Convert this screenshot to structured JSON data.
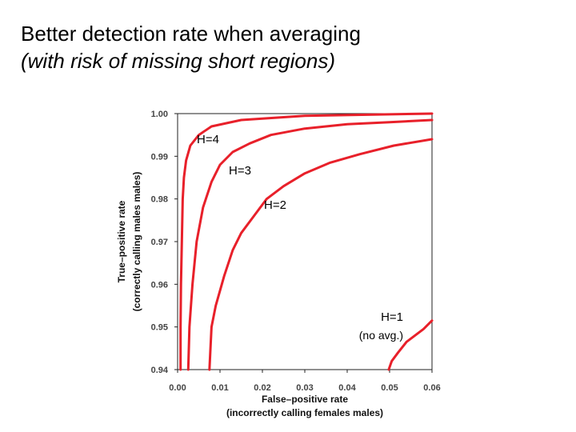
{
  "title": "Better detection rate when averaging",
  "subtitle": "(with risk of missing short regions)",
  "chart_data": {
    "type": "line",
    "xlabel": "False–positive rate",
    "xlabel_sub": "(incorrectly calling females males)",
    "ylabel": "True–positive rate",
    "ylabel_sub": "(correctly calling males males)",
    "xlim": [
      0.0,
      0.06
    ],
    "ylim": [
      0.94,
      1.0
    ],
    "xticks": [
      "0.00",
      "0.01",
      "0.02",
      "0.03",
      "0.04",
      "0.05",
      "0.06"
    ],
    "yticks": [
      "0.94",
      "0.95",
      "0.96",
      "0.97",
      "0.98",
      "0.99",
      "1.00"
    ],
    "grid": false,
    "line_color": "#e8202a",
    "series": [
      {
        "name": "H=4",
        "label": "H=4",
        "note": "",
        "points": [
          [
            0.0007,
            0.94
          ],
          [
            0.0007,
            0.95
          ],
          [
            0.0008,
            0.96
          ],
          [
            0.001,
            0.97
          ],
          [
            0.0012,
            0.98
          ],
          [
            0.0015,
            0.985
          ],
          [
            0.002,
            0.989
          ],
          [
            0.003,
            0.9925
          ],
          [
            0.005,
            0.995
          ],
          [
            0.008,
            0.997
          ],
          [
            0.015,
            0.9985
          ],
          [
            0.03,
            0.9995
          ],
          [
            0.06,
            1.0
          ]
        ]
      },
      {
        "name": "H=3",
        "label": "H=3",
        "note": "",
        "points": [
          [
            0.0025,
            0.94
          ],
          [
            0.0028,
            0.95
          ],
          [
            0.0035,
            0.96
          ],
          [
            0.0045,
            0.97
          ],
          [
            0.006,
            0.978
          ],
          [
            0.008,
            0.984
          ],
          [
            0.01,
            0.988
          ],
          [
            0.013,
            0.991
          ],
          [
            0.017,
            0.993
          ],
          [
            0.022,
            0.995
          ],
          [
            0.03,
            0.9965
          ],
          [
            0.04,
            0.9975
          ],
          [
            0.05,
            0.998
          ],
          [
            0.06,
            0.9985
          ]
        ]
      },
      {
        "name": "H=2",
        "label": "H=2",
        "note": "",
        "points": [
          [
            0.0075,
            0.94
          ],
          [
            0.008,
            0.95
          ],
          [
            0.009,
            0.955
          ],
          [
            0.011,
            0.962
          ],
          [
            0.013,
            0.968
          ],
          [
            0.015,
            0.972
          ],
          [
            0.018,
            0.976
          ],
          [
            0.021,
            0.98
          ],
          [
            0.025,
            0.983
          ],
          [
            0.03,
            0.986
          ],
          [
            0.036,
            0.9885
          ],
          [
            0.043,
            0.9905
          ],
          [
            0.051,
            0.9925
          ],
          [
            0.06,
            0.994
          ]
        ]
      },
      {
        "name": "H=1",
        "label": "H=1",
        "note": "(no avg.)",
        "points": [
          [
            0.0498,
            0.94
          ],
          [
            0.0505,
            0.942
          ],
          [
            0.052,
            0.944
          ],
          [
            0.054,
            0.9465
          ],
          [
            0.056,
            0.948
          ],
          [
            0.058,
            0.9495
          ],
          [
            0.06,
            0.9515
          ]
        ]
      }
    ]
  }
}
